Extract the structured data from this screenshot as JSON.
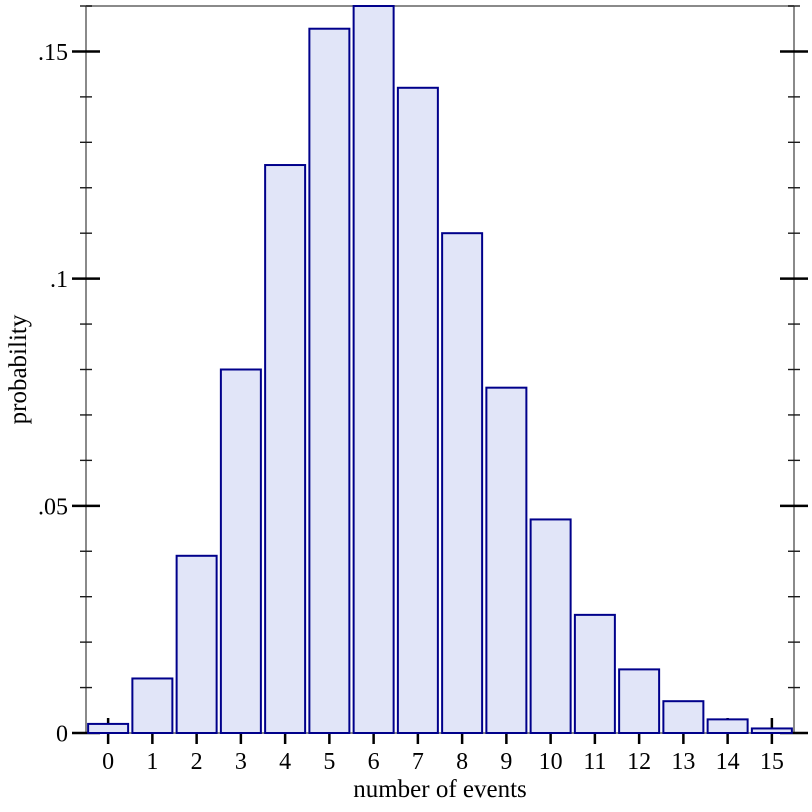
{
  "chart_data": {
    "type": "bar",
    "title": "",
    "xlabel": "number of events",
    "ylabel": "probability",
    "categories": [
      "0",
      "1",
      "2",
      "3",
      "4",
      "5",
      "6",
      "7",
      "8",
      "9",
      "10",
      "11",
      "12",
      "13",
      "14",
      "15"
    ],
    "values": [
      0.002,
      0.012,
      0.039,
      0.08,
      0.125,
      0.155,
      0.16,
      0.142,
      0.11,
      0.076,
      0.047,
      0.026,
      0.014,
      0.007,
      0.003,
      0.001
    ],
    "ylim": [
      0,
      0.16
    ],
    "xlim_slots": 16,
    "y_major_ticks": [
      {
        "value": 0,
        "label": "0"
      },
      {
        "value": 0.05,
        "label": ".05"
      },
      {
        "value": 0.1,
        "label": ".1"
      },
      {
        "value": 0.15,
        "label": ".15"
      }
    ],
    "y_minor_tick_step": 0.01,
    "grid": false,
    "legend": null,
    "frame": "full-box-with-mirrored-ticks"
  },
  "style": {
    "bar_fill": "#e1e5f8",
    "bar_stroke": "#00008b",
    "axis_color": "#8a8a8a",
    "major_tick_color": "#000000",
    "minor_tick_color": "#1a1a1a",
    "text_color": "#000000",
    "background": "#ffffff"
  }
}
